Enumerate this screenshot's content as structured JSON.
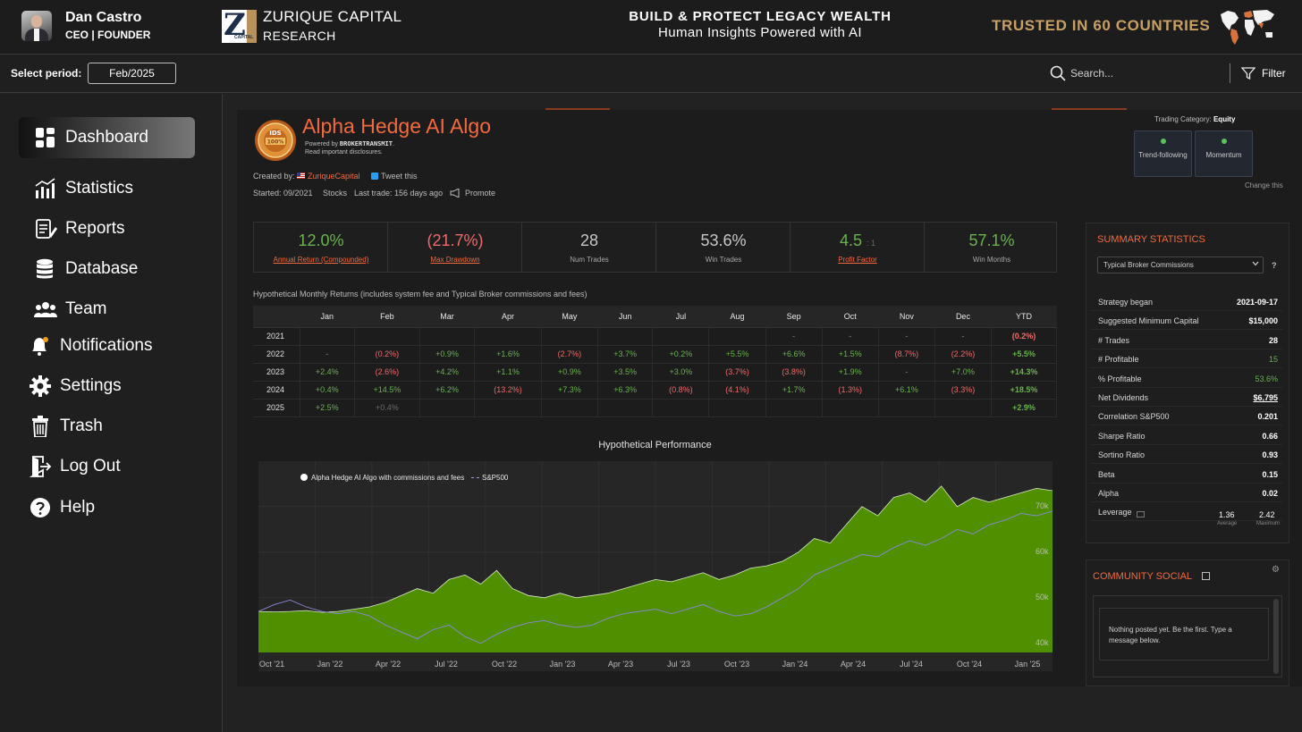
{
  "header": {
    "user_name": "Dan Castro",
    "user_role": "CEO | FOUNDER",
    "brand_line1": "ZURIQUE CAPITAL",
    "brand_line2": "RESEARCH",
    "tagline1": "BUILD & PROTECT LEGACY WEALTH",
    "tagline2": "Human Insights Powered with AI",
    "trusted": "TRUSTED IN 60 COUNTRIES",
    "logo_letter": "Z",
    "logo_caption": "CAPITAL"
  },
  "toolbar": {
    "period_label": "Select period:",
    "period_value": "Feb/2025",
    "search_placeholder": "Search...",
    "filter_label": "Filter"
  },
  "sidebar": {
    "items": [
      {
        "label": "Dashboard",
        "icon": "dashboard-icon",
        "active": true
      },
      {
        "label": "Statistics",
        "icon": "statistics-icon"
      },
      {
        "label": "Reports",
        "icon": "reports-icon"
      },
      {
        "label": "Database",
        "icon": "database-icon"
      },
      {
        "label": "Team",
        "icon": "team-icon"
      },
      {
        "label": "Notifications",
        "icon": "bell-icon"
      },
      {
        "label": "Settings",
        "icon": "gear-icon"
      },
      {
        "label": "Trash",
        "icon": "trash-icon"
      },
      {
        "label": "Log Out",
        "icon": "logout-icon"
      },
      {
        "label": "Help",
        "icon": "help-icon"
      }
    ]
  },
  "strategy": {
    "title": "Alpha Hedge AI Algo",
    "powered_prefix": "Powered by ",
    "powered_by": "BROKERTRANSMIT",
    "disclosure": "Read important disclosures.",
    "created_label": "Created by:",
    "creator": "ZuriqueCapital",
    "tweet": "Tweet this",
    "started": "Started: 09/2021",
    "asset": "Stocks",
    "last_trade": "Last trade: 156 days ago",
    "promote": "Promote",
    "seal_text": "100%",
    "trading_category_label": "Trading Category:",
    "trading_category": "Equity",
    "categories": [
      "Trend-following",
      "Momentum"
    ],
    "change_this": "Change this"
  },
  "kpis": [
    {
      "value": "12.0%",
      "label": "Annual Return (Compounded)",
      "color": "#69b34c"
    },
    {
      "value": "(21.7%)",
      "label": "Max Drawdown",
      "color": "#f06a6a"
    },
    {
      "value": "28",
      "label": "Num Trades"
    },
    {
      "value": "53.6%",
      "label": "Win Trades"
    },
    {
      "value": "4.5",
      "unit": ": 1",
      "label": "Profit Factor",
      "color": "#69b34c"
    },
    {
      "value": "57.1%",
      "label": "Win Months",
      "color": "#69b34c"
    }
  ],
  "monthly": {
    "title": "Hypothetical Monthly Returns (includes system fee and Typical Broker commissions and fees)",
    "headers": [
      "",
      "Jan",
      "Feb",
      "Mar",
      "Apr",
      "May",
      "Jun",
      "Jul",
      "Aug",
      "Sep",
      "Oct",
      "Nov",
      "Dec",
      "YTD"
    ],
    "rows": [
      [
        "2021",
        "",
        "",
        "",
        "",
        "",
        "",
        "",
        "",
        "-",
        "-",
        "-",
        "-",
        "(0.2%)"
      ],
      [
        "2022",
        "-",
        "(0.2%)",
        "+0.9%",
        "+1.6%",
        "(2.7%)",
        "+3.7%",
        "+0.2%",
        "+5.5%",
        "+6.6%",
        "+1.5%",
        "(8.7%)",
        "(2.2%)",
        "+5.5%"
      ],
      [
        "2023",
        "+2.4%",
        "(2.6%)",
        "+4.2%",
        "+1.1%",
        "+0.9%",
        "+3.5%",
        "+3.0%",
        "(3.7%)",
        "(3.8%)",
        "+1.9%",
        "-",
        "+7.0%",
        "+14.3%"
      ],
      [
        "2024",
        "+0.4%",
        "+14.5%",
        "+6.2%",
        "(13.2%)",
        "+7.3%",
        "+6.3%",
        "(0.8%)",
        "(4.1%)",
        "+1.7%",
        "(1.3%)",
        "+6.1%",
        "(3.3%)",
        "+18.5%"
      ],
      [
        "2025",
        "+2.5%",
        "+0.4%",
        "",
        "",
        "",
        "",
        "",
        "",
        "",
        "",
        "",
        "",
        "+2.9%"
      ]
    ]
  },
  "chart_data": {
    "type": "area",
    "title": "Hypothetical Performance",
    "series": [
      {
        "name": "Alpha Hedge AI Algo with commissions and fees",
        "color": "#4f8f00",
        "values": [
          47000,
          46900,
          47000,
          47200,
          46800,
          47000,
          47500,
          48000,
          49000,
          50500,
          52000,
          51000,
          54000,
          55000,
          53000,
          56000,
          52000,
          50500,
          50000,
          51000,
          50000,
          50500,
          51000,
          52000,
          53000,
          54000,
          53500,
          54500,
          55500,
          54000,
          55000,
          56500,
          57000,
          58000,
          60000,
          63000,
          62000,
          66000,
          70000,
          68000,
          72000,
          73000,
          71000,
          74500,
          70000,
          72000,
          71000,
          72000,
          73000,
          74000,
          73500
        ]
      },
      {
        "name": "S&P500",
        "color": "#8a8ad8",
        "values": [
          47000,
          48500,
          49500,
          48000,
          47000,
          46500,
          47000,
          46000,
          44000,
          42500,
          41000,
          43000,
          44000,
          41500,
          40000,
          42000,
          43500,
          44500,
          45000,
          44000,
          43500,
          44000,
          45500,
          46500,
          47000,
          47500,
          46500,
          47500,
          48500,
          47000,
          46000,
          46500,
          48000,
          50000,
          52000,
          55000,
          56500,
          58000,
          59500,
          59000,
          61000,
          62500,
          61500,
          63000,
          65000,
          64000,
          66000,
          67000,
          68500,
          68000,
          69000
        ]
      }
    ],
    "x_tick_labels": [
      "Oct '21",
      "Jan '22",
      "Apr '22",
      "Jul '22",
      "Oct '22",
      "Jan '23",
      "Apr '23",
      "Jul '23",
      "Oct '23",
      "Jan '24",
      "Apr '24",
      "Jul '24",
      "Oct '24",
      "Jan '25"
    ],
    "y_tick_labels": [
      "70k",
      "60k",
      "50k",
      "40k"
    ],
    "y_ticks": [
      70000,
      60000,
      50000,
      40000
    ],
    "ylim": [
      38000,
      78000
    ]
  },
  "summary": {
    "title": "SUMMARY STATISTICS",
    "select_value": "Typical Broker Commissions",
    "help": "?",
    "rows": [
      {
        "label": "Strategy began",
        "value": "2021-09-17"
      },
      {
        "label": "Suggested Minimum Capital",
        "value": "$15,000"
      },
      {
        "label": "# Trades",
        "value": "28"
      },
      {
        "label": "# Profitable",
        "value": "15",
        "green": true
      },
      {
        "label": "% Profitable",
        "value": "53.6%",
        "green": true
      },
      {
        "label": "Net Dividends",
        "value": "$6,795",
        "underline": true
      },
      {
        "label": "Correlation S&P500",
        "value": "0.201"
      },
      {
        "label": "Sharpe Ratio",
        "value": "0.66"
      },
      {
        "label": "Sortino Ratio",
        "value": "0.93"
      },
      {
        "label": "Beta",
        "value": "0.15"
      },
      {
        "label": "Alpha",
        "value": "0.02"
      },
      {
        "label": "Leverage",
        "value": ""
      }
    ],
    "leverage_avg": "1.36",
    "leverage_avg_label": "Average",
    "leverage_max": "2.42",
    "leverage_max_label": "Maximum"
  },
  "community": {
    "title": "COMMUNITY SOCIAL",
    "empty_text": "Nothing posted yet. Be the first. Type a message below."
  }
}
